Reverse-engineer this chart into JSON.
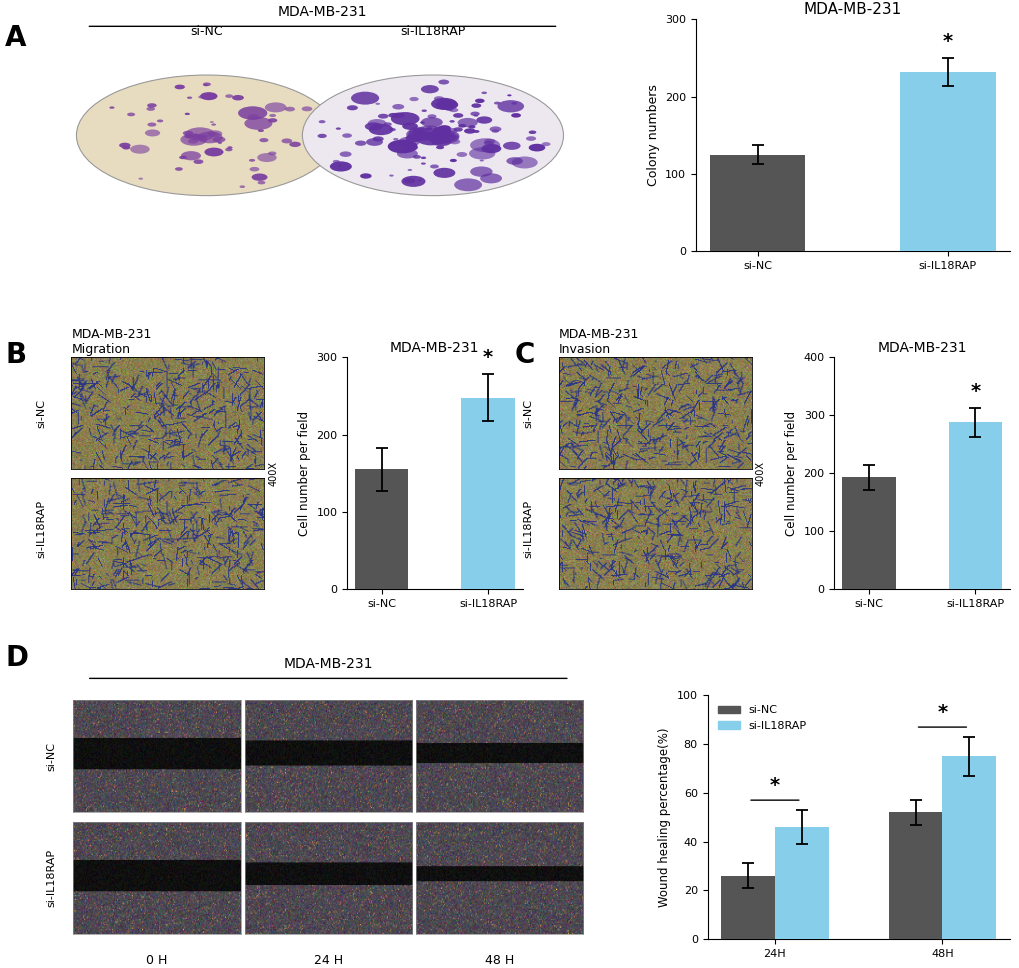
{
  "panel_A": {
    "title": "MDA-MB-231",
    "categories": [
      "si-NC",
      "si-IL18RAP"
    ],
    "values": [
      125,
      232
    ],
    "errors": [
      12,
      18
    ],
    "colors": [
      "#555555",
      "#87CEEB"
    ],
    "ylabel": "Colony numbers",
    "ylim": [
      0,
      300
    ],
    "yticks": [
      0,
      100,
      200,
      300
    ]
  },
  "panel_B": {
    "title": "MDA-MB-231",
    "img_title": "MDA-MB-231\nMigration",
    "categories": [
      "si-NC",
      "si-IL18RAP"
    ],
    "values": [
      155,
      248
    ],
    "errors": [
      28,
      30
    ],
    "colors": [
      "#555555",
      "#87CEEB"
    ],
    "ylabel": "Cell number per field",
    "ylim": [
      0,
      300
    ],
    "yticks": [
      0,
      100,
      200,
      300
    ],
    "img_bg": "#8B8050",
    "img_cell_color": "#3a4a8a"
  },
  "panel_C": {
    "title": "MDA-MB-231",
    "img_title": "MDA-MB-231\nInvasion",
    "categories": [
      "si-NC",
      "si-IL18RAP"
    ],
    "values": [
      193,
      288
    ],
    "errors": [
      22,
      25
    ],
    "colors": [
      "#555555",
      "#87CEEB"
    ],
    "ylabel": "Cell number per field",
    "ylim": [
      0,
      400
    ],
    "yticks": [
      0,
      100,
      200,
      300,
      400
    ],
    "img_bg": "#8B8050",
    "img_cell_color": "#3a4a8a"
  },
  "panel_D": {
    "title": "MDA-MB-231",
    "categories": [
      "24H",
      "48H"
    ],
    "values_NC": [
      26,
      52
    ],
    "values_IL18RAP": [
      46,
      75
    ],
    "errors_NC": [
      5,
      5
    ],
    "errors_IL18RAP": [
      7,
      8
    ],
    "colors": [
      "#555555",
      "#87CEEB"
    ],
    "ylabel": "Wound healing percentage(%)",
    "ylim": [
      0,
      100
    ],
    "yticks": [
      0,
      20,
      40,
      60,
      80,
      100
    ],
    "legend_labels": [
      "si-NC",
      "si-IL18RAP"
    ],
    "img_bg": "#4a4a52",
    "wound_color": "#111111"
  },
  "bg_color": "#ffffff",
  "label_A": "A",
  "label_B": "B",
  "label_C": "C",
  "label_D": "D",
  "label_fontsize": 20,
  "title_fontsize": 11,
  "axis_fontsize": 9,
  "tick_fontsize": 8
}
